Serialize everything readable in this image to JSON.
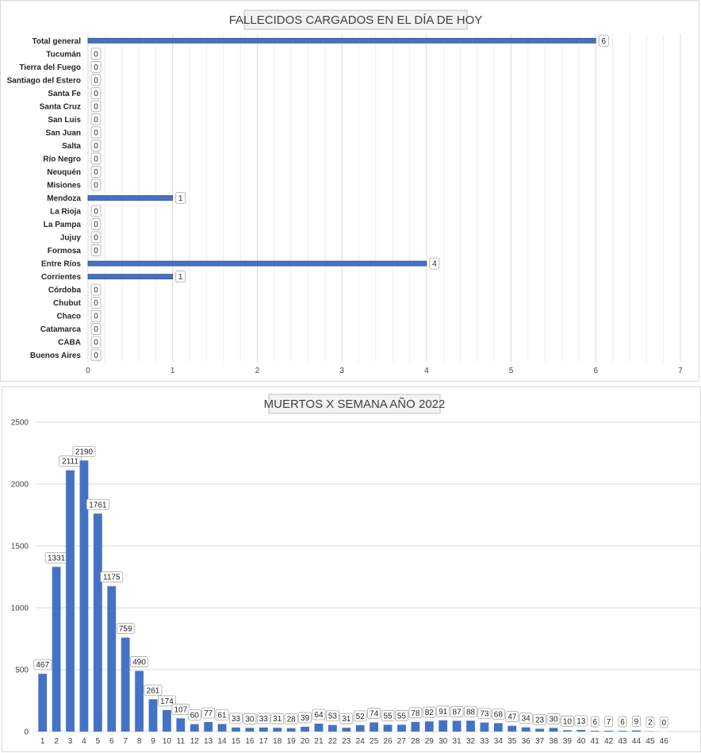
{
  "chart_data": [
    {
      "type": "bar",
      "orientation": "horizontal",
      "title": "FALLECIDOS CARGADOS EN EL DÍA DE HOY",
      "categories": [
        "Total general",
        "Tucumán",
        "Tierra del Fuego",
        "Santiago del Estero",
        "Santa Fe",
        "Santa Cruz",
        "San Luis",
        "San Juan",
        "Salta",
        "Río Negro",
        "Neuquén",
        "Misiones",
        "Mendoza",
        "La Rioja",
        "La Pampa",
        "Jujuy",
        "Formosa",
        "Entre Ríos",
        "Corrientes",
        "Córdoba",
        "Chubut",
        "Chaco",
        "Catamarca",
        "CABA",
        "Buenos Aires"
      ],
      "values": [
        6,
        0,
        0,
        0,
        0,
        0,
        0,
        0,
        0,
        0,
        0,
        0,
        1,
        0,
        0,
        0,
        0,
        4,
        1,
        0,
        0,
        0,
        0,
        0,
        0
      ],
      "xlim": [
        0,
        7
      ],
      "xticks": [
        "0",
        "1",
        "2",
        "3",
        "4",
        "5",
        "6",
        "7"
      ],
      "grid": true,
      "bar_color": "#4472c4"
    },
    {
      "type": "bar",
      "orientation": "vertical",
      "title": "MUERTOS X SEMANA AÑO 2022",
      "categories": [
        "1",
        "2",
        "3",
        "4",
        "5",
        "6",
        "7",
        "8",
        "9",
        "10",
        "11",
        "12",
        "13",
        "14",
        "15",
        "16",
        "17",
        "18",
        "19",
        "20",
        "21",
        "22",
        "23",
        "24",
        "25",
        "26",
        "27",
        "28",
        "29",
        "30",
        "31",
        "32",
        "33",
        "34",
        "35",
        "36",
        "37",
        "38",
        "39",
        "40",
        "41",
        "42",
        "43",
        "44",
        "45",
        "46"
      ],
      "values": [
        467,
        1331,
        2111,
        2190,
        1761,
        1175,
        759,
        490,
        261,
        174,
        107,
        60,
        77,
        61,
        33,
        30,
        33,
        31,
        28,
        39,
        64,
        53,
        31,
        52,
        74,
        55,
        55,
        78,
        82,
        91,
        87,
        88,
        73,
        68,
        47,
        34,
        23,
        30,
        10,
        13,
        6,
        7,
        6,
        9,
        2,
        0
      ],
      "ylim": [
        0,
        2500
      ],
      "yticks": [
        "0",
        "500",
        "1000",
        "1500",
        "2000",
        "2500"
      ],
      "grid": true,
      "bar_color": "#4472c4"
    }
  ]
}
